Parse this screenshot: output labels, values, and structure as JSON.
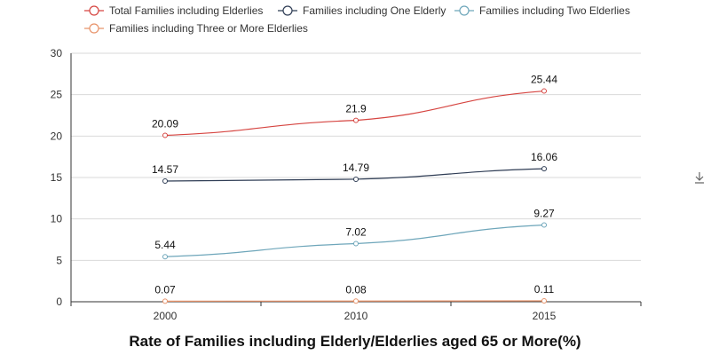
{
  "chart_data": {
    "type": "line",
    "title": "Rate of Families including Elderly/Elderlies aged 65 or More(%)",
    "categories": [
      "2000",
      "2010",
      "2015"
    ],
    "ylim": [
      0,
      30
    ],
    "yticks": [
      0,
      5,
      10,
      15,
      20,
      25,
      30
    ],
    "grid": true,
    "legend_position": "top-left",
    "series": [
      {
        "name": "Total Families including Elderlies",
        "color": "#d64541",
        "values": [
          20.09,
          21.9,
          25.44
        ]
      },
      {
        "name": "Families including One Elderly",
        "color": "#2f3d55",
        "values": [
          14.57,
          14.79,
          16.06
        ]
      },
      {
        "name": "Families including Two Elderlies",
        "color": "#6ea6ba",
        "values": [
          5.44,
          7.02,
          9.27
        ]
      },
      {
        "name": "Families including Three or More Elderlies",
        "color": "#e8936a",
        "values": [
          0.07,
          0.08,
          0.11
        ]
      }
    ]
  },
  "toolbar": {
    "download_icon": "download-icon"
  }
}
